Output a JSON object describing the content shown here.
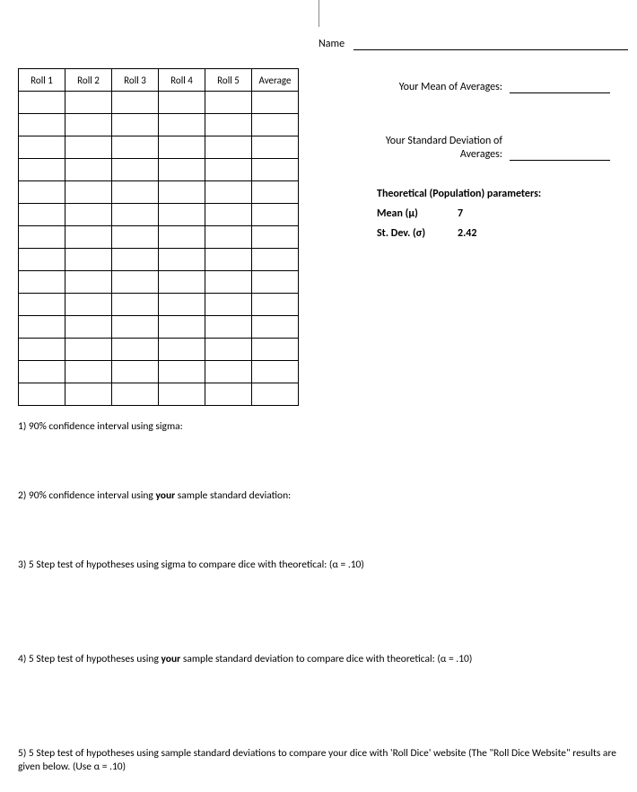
{
  "name_label": "Name",
  "table": {
    "headers": [
      "Roll 1",
      "Roll 2",
      "Roll 3",
      "Roll 4",
      "Roll 5",
      "Average"
    ],
    "rows": 14
  },
  "mean_of_avg_label": "Your Mean of Averages:",
  "stddev_of_avg_label": "Your Standard Deviation of Averages:",
  "params_header": "Theoretical (Population) parameters:",
  "mean_label": "Mean (μ)",
  "mean_value": "7",
  "stddev_label": "St. Dev. (σ)",
  "stddev_value": "2.42",
  "q1": "1)  90% confidence interval using sigma:",
  "q2a": "2)  90% confidence interval using ",
  "q2b": "your",
  "q2c": " sample standard deviation:",
  "q3": "3)  5 Step test of hypotheses using sigma to compare dice with theoretical:  (α = .10)",
  "q4a": "4)  5 Step test of hypotheses using ",
  "q4b": "your",
  "q4c": " sample standard deviation to compare dice with theoretical: (α = .10)",
  "q5": "5)  5 Step test of hypotheses  using sample standard deviations to compare your dice with 'Roll Dice' website (The \"Roll Dice Website\" results are given below.  (Use α = .10)"
}
